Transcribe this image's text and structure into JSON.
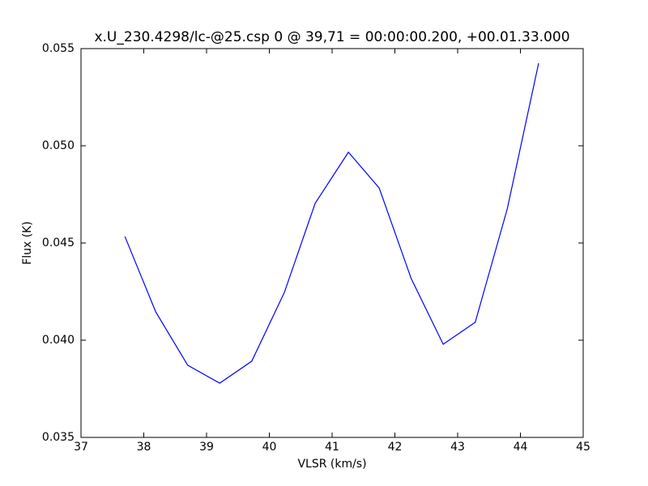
{
  "chart_data": {
    "type": "line",
    "title": "x.U_230.4298/lc-@25.csp 0 @ 39,71 = 00:00:00.200, +00.01.33.000",
    "x_label": "VLSR (km/s)",
    "y_label": "Flux (K)",
    "x": [
      37.7,
      38.19,
      38.7,
      39.21,
      39.72,
      40.24,
      40.73,
      41.26,
      41.75,
      42.26,
      42.77,
      43.28,
      43.79,
      44.29
    ],
    "series": [
      {
        "color": "#0000ff",
        "values": [
          0.04533,
          0.04146,
          0.03871,
          0.03779,
          0.03892,
          0.04246,
          0.04704,
          0.04967,
          0.04783,
          0.04317,
          0.03979,
          0.04092,
          0.04675,
          0.05425
        ]
      }
    ],
    "xlim": [
      37,
      45
    ],
    "xticks": [
      37,
      38,
      39,
      40,
      41,
      42,
      43,
      44,
      45
    ],
    "ylim": [
      0.035,
      0.055
    ],
    "yticks": [
      0.035,
      {
        "value": 0.04,
        "label": "0.040"
      },
      0.045,
      {
        "value": 0.05,
        "label": "0.050"
      },
      0.055
    ],
    "grid": false
  }
}
